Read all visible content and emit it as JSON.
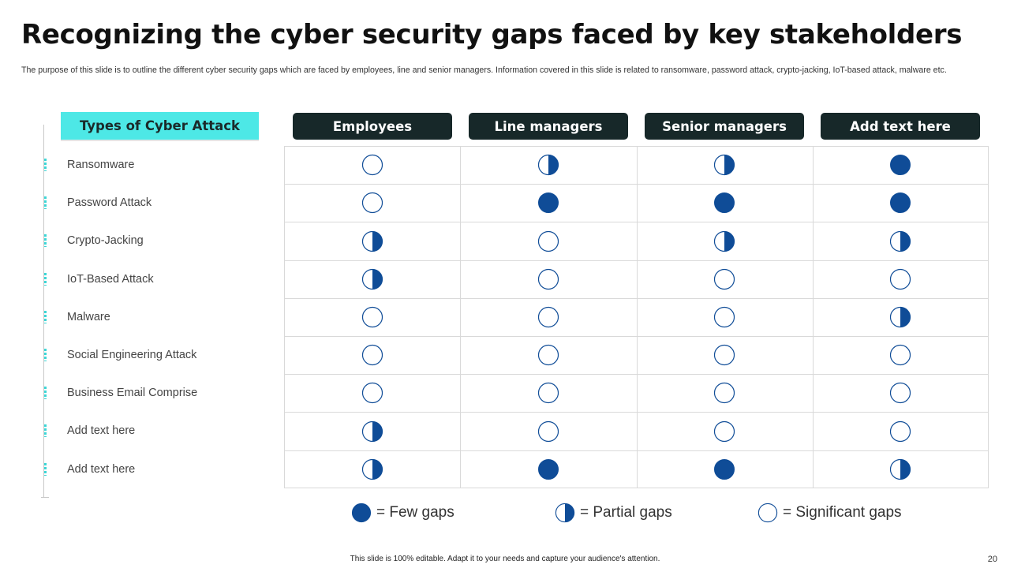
{
  "title": "Recognizing the cyber security gaps faced by key stakeholders",
  "subtitle": "The purpose of this slide is to outline the different cyber security gaps which are faced by employees, line and senior managers. Information covered in this slide is related to ransomware, password attack, crypto-jacking, IoT-based attack, malware etc.",
  "types_header": "Types of Cyber Attack",
  "columns": [
    "Employees",
    "Line managers",
    "Senior managers",
    "Add text here"
  ],
  "rows": [
    {
      "label": "Ransomware",
      "values": [
        "significant",
        "partial",
        "partial",
        "few"
      ]
    },
    {
      "label": "Password Attack",
      "values": [
        "significant",
        "few",
        "few",
        "few"
      ]
    },
    {
      "label": "Crypto-Jacking",
      "values": [
        "partial",
        "significant",
        "partial",
        "partial"
      ]
    },
    {
      "label": "IoT-Based Attack",
      "values": [
        "partial",
        "significant",
        "significant",
        "significant"
      ]
    },
    {
      "label": "Malware",
      "values": [
        "significant",
        "significant",
        "significant",
        "partial"
      ]
    },
    {
      "label": "Social Engineering Attack",
      "values": [
        "significant",
        "significant",
        "significant",
        "significant"
      ]
    },
    {
      "label": "Business Email Comprise",
      "values": [
        "significant",
        "significant",
        "significant",
        "significant"
      ]
    },
    {
      "label": "Add text here",
      "values": [
        "partial",
        "significant",
        "significant",
        "significant"
      ]
    },
    {
      "label": "Add text here",
      "values": [
        "partial",
        "few",
        "few",
        "partial"
      ]
    }
  ],
  "legend": {
    "few": "= Few gaps",
    "partial": "= Partial gaps",
    "significant": "= Significant gaps"
  },
  "colors": {
    "accent_cyan": "#4de8e6",
    "header_dark": "#172829",
    "circle_blue": "#0f4c97"
  },
  "footer": "This slide is 100% editable.  Adapt it to your needs and capture your audience's attention.",
  "page_number": "20"
}
